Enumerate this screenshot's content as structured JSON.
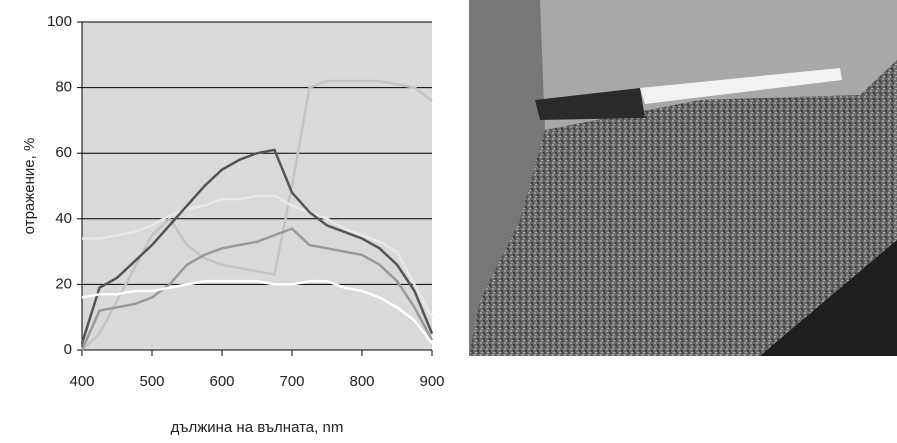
{
  "chart_data": {
    "type": "line",
    "x": [
      400,
      425,
      450,
      475,
      500,
      525,
      550,
      575,
      600,
      625,
      650,
      675,
      700,
      725,
      750,
      775,
      800,
      825,
      850,
      875,
      900
    ],
    "series": [
      {
        "color": "#c4c4c4",
        "values": [
          0,
          5,
          15,
          25,
          35,
          40,
          32,
          28,
          26,
          25,
          24,
          23,
          50,
          80,
          82,
          82,
          82,
          82,
          81,
          80,
          76
        ]
      },
      {
        "color": "#e8e8e8",
        "values": [
          34,
          34,
          35,
          36,
          38,
          41,
          43,
          44,
          46,
          46,
          47,
          47,
          44,
          42,
          40,
          37,
          35,
          33,
          30,
          20,
          10
        ]
      },
      {
        "color": "#555555",
        "values": [
          2,
          19,
          22,
          27,
          32,
          38,
          44,
          50,
          55,
          58,
          60,
          61,
          48,
          42,
          38,
          36,
          34,
          31,
          26,
          18,
          5
        ]
      },
      {
        "color": "#999999",
        "values": [
          0,
          12,
          13,
          14,
          16,
          20,
          26,
          29,
          31,
          32,
          33,
          35,
          37,
          32,
          31,
          30,
          29,
          26,
          21,
          13,
          3
        ]
      },
      {
        "color": "#ffffff",
        "values": [
          16,
          17,
          17,
          18,
          18,
          19,
          20,
          21,
          21,
          21,
          21,
          20,
          20,
          21,
          21,
          19,
          18,
          16,
          13,
          9,
          2
        ]
      }
    ],
    "xlabel": "дължина на вълната, nm",
    "ylabel": "отражение, %",
    "xlim": [
      400,
      900
    ],
    "xticks": [
      400,
      500,
      600,
      700,
      800,
      900
    ],
    "ylim": [
      0,
      100
    ],
    "yticks": [
      0,
      20,
      40,
      60,
      80,
      100
    ],
    "grid": true,
    "background": "#d9d9d9"
  }
}
